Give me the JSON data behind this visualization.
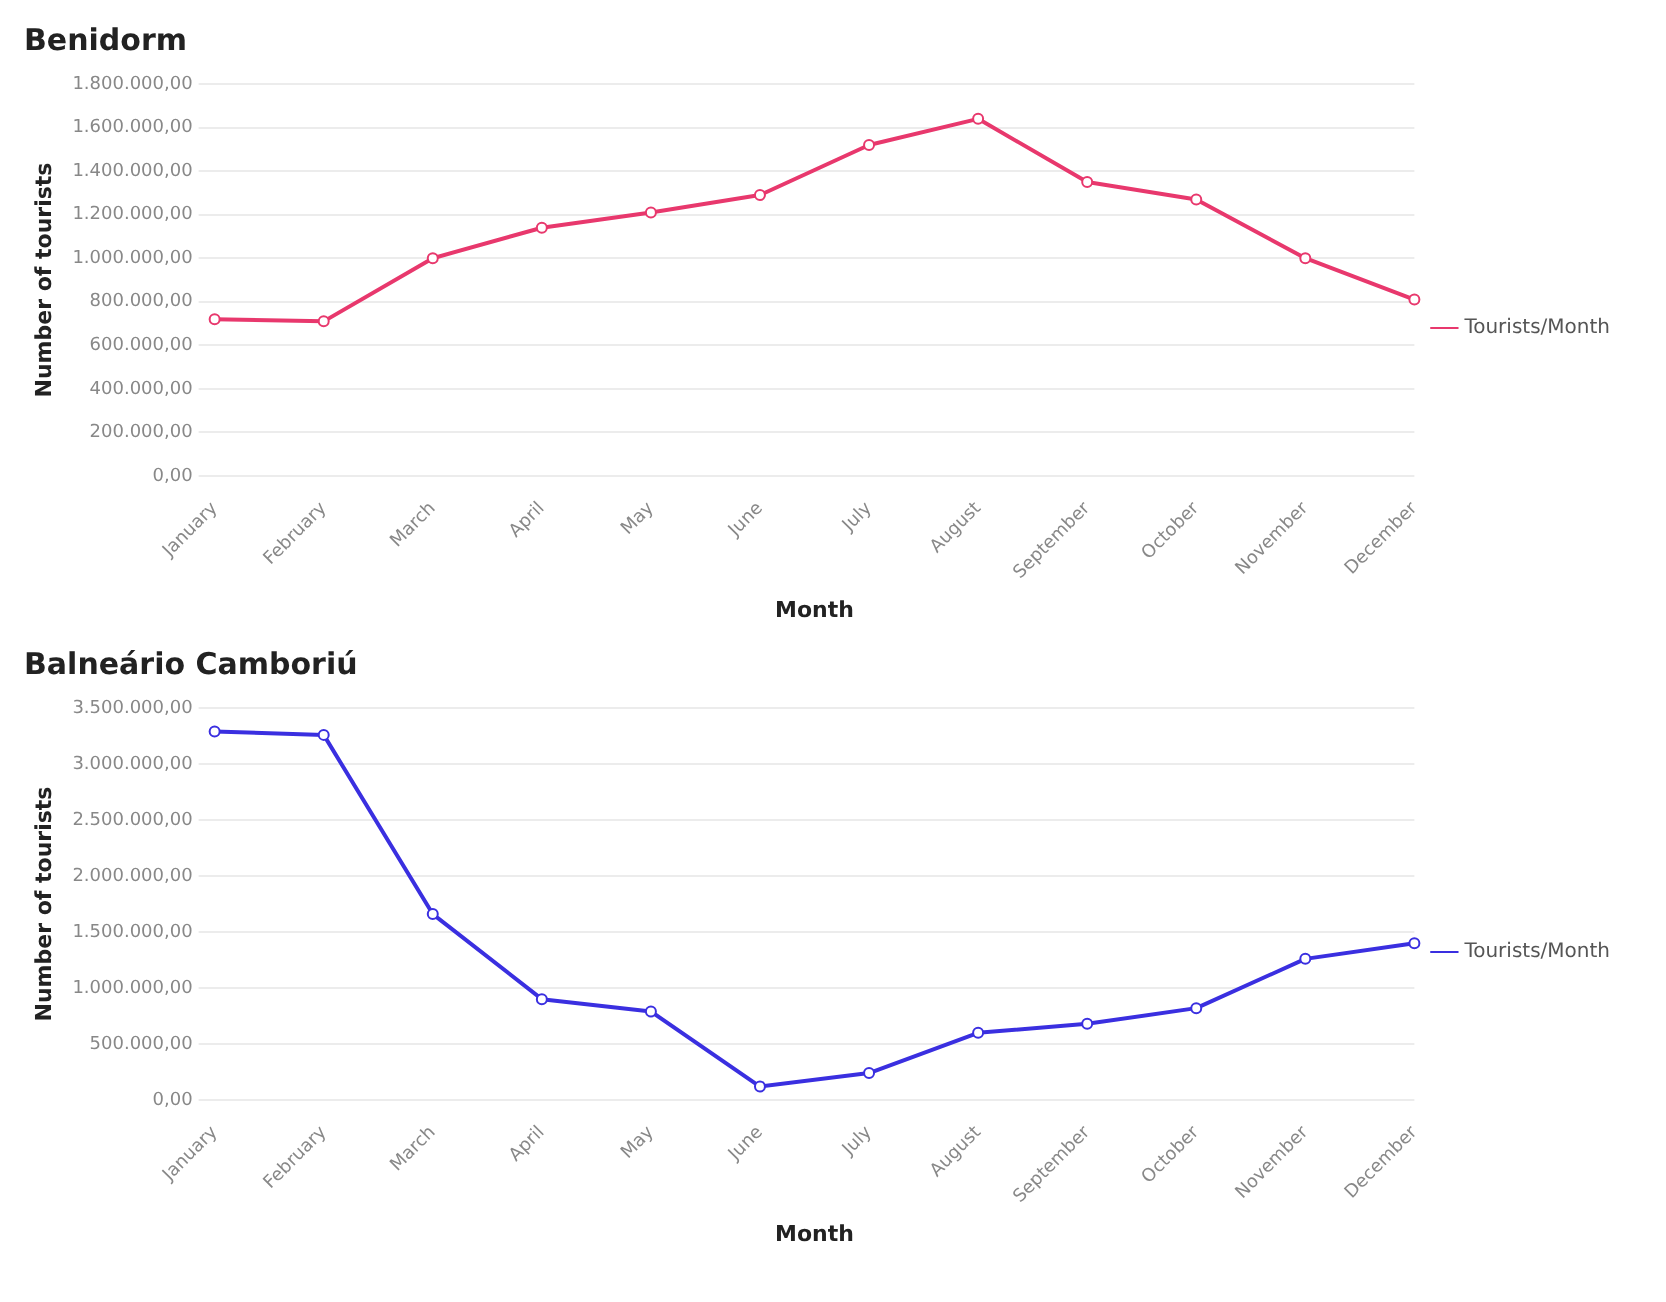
{
  "chart_data": [
    {
      "type": "line",
      "title": "Benidorm",
      "xlabel": "Month",
      "ylabel": "Number of tourists",
      "categories": [
        "January",
        "February",
        "March",
        "April",
        "May",
        "June",
        "July",
        "August",
        "September",
        "October",
        "November",
        "December"
      ],
      "series": [
        {
          "name": "Tourists/Month",
          "color": "#e8386d",
          "values": [
            720000,
            710000,
            1000000,
            1140000,
            1210000,
            1290000,
            1520000,
            1640000,
            1350000,
            1270000,
            1000000,
            810000
          ]
        }
      ],
      "ylim": [
        0,
        1800000
      ],
      "yticks": [
        {
          "value": 0,
          "label": "0,00"
        },
        {
          "value": 200000,
          "label": "200.000,00"
        },
        {
          "value": 400000,
          "label": "400.000,00"
        },
        {
          "value": 600000,
          "label": "600.000,00"
        },
        {
          "value": 800000,
          "label": "800.000,00"
        },
        {
          "value": 1000000,
          "label": "1.000.000,00"
        },
        {
          "value": 1200000,
          "label": "1.200.000,00"
        },
        {
          "value": 1400000,
          "label": "1.400.000,00"
        },
        {
          "value": 1600000,
          "label": "1.600.000,00"
        },
        {
          "value": 1800000,
          "label": "1.800.000,00"
        }
      ],
      "grid": "y",
      "legend": "right",
      "marker": "circle",
      "line_style": "solid"
    },
    {
      "type": "line",
      "title": "Balneário Camboriú",
      "xlabel": "Month",
      "ylabel": "Number of tourists",
      "categories": [
        "January",
        "February",
        "March",
        "April",
        "May",
        "June",
        "July",
        "August",
        "September",
        "October",
        "November",
        "December"
      ],
      "series": [
        {
          "name": "Tourists/Month",
          "color": "#3a2fe0",
          "values": [
            3290000,
            3260000,
            1660000,
            900000,
            790000,
            120000,
            240000,
            600000,
            680000,
            820000,
            1260000,
            1400000
          ]
        }
      ],
      "ylim": [
        0,
        3500000
      ],
      "yticks": [
        {
          "value": 0,
          "label": "0,00"
        },
        {
          "value": 500000,
          "label": "500.000,00"
        },
        {
          "value": 1000000,
          "label": "1.000.000,00"
        },
        {
          "value": 1500000,
          "label": "1.500.000,00"
        },
        {
          "value": 2000000,
          "label": "2.000.000,00"
        },
        {
          "value": 2500000,
          "label": "2.500.000,00"
        },
        {
          "value": 3000000,
          "label": "3.000.000,00"
        },
        {
          "value": 3500000,
          "label": "3.500.000,00"
        }
      ],
      "grid": "y",
      "legend": "right",
      "marker": "circle",
      "line_style": "solid"
    }
  ]
}
